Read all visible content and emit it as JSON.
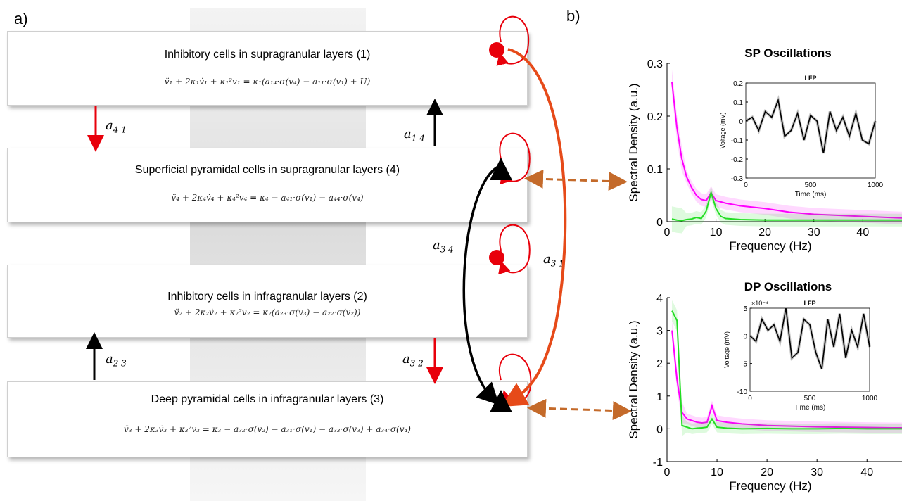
{
  "panel_a_label": "a)",
  "panel_b_label": "b)",
  "boxes": [
    {
      "title": "Inhibitory cells in supragranular layers (1)",
      "equation": "v̈₁ + 2κ₁v̇₁ + κ₁²v₁ = κ₁(a₁₄·σ(v₄) − a₁₁·σ(v₁) + U)"
    },
    {
      "title": "Superficial pyramidal cells in supragranular  layers (4)",
      "equation": "v̈₄ + 2κ₄v̇₄ + κ₄²v₄ = κ₄ − a₄₁·σ(v₁) − a₄₄·σ(v₄)"
    },
    {
      "title": "Inhibitory cells in infragranular layers (2)",
      "equation": "v̈₂ + 2κ₂v̇₂ + κ₂²v₂ = κ₂(a₂₃·σ(v₃) − a₂₂·σ(v₂))"
    },
    {
      "title": "Deep pyramidal cells in infragranular  layers (3)",
      "equation": "v̈₃ + 2κ₃v̇₃ + κ₃²v₃ = κ₃ − a₃₂·σ(v₂) − a₃₁·σ(v₁) − a₃₃·σ(v₃) + a₃₄·σ(v₄)"
    }
  ],
  "connections": {
    "a41": {
      "sym": "a",
      "sub": "4 1"
    },
    "a14": {
      "sym": "a",
      "sub": "1 4"
    },
    "a34": {
      "sym": "a",
      "sub": "3 4"
    },
    "a31": {
      "sym": "a",
      "sub": "3 1"
    },
    "a23": {
      "sym": "a",
      "sub": "2 3"
    },
    "a32": {
      "sym": "a",
      "sub": "3 2"
    }
  },
  "colors": {
    "inhibitory": "#e8000b",
    "pyramidal": "#000000",
    "forward": "#e64a19",
    "probe": "#c46a2a",
    "magenta": "#ff00ff",
    "green": "#22dd22"
  },
  "chart_data": [
    {
      "type": "line",
      "title": "SP Oscillations",
      "xlabel": "Frequency (Hz)",
      "ylabel": "Spectral Density (a.u.)",
      "xlim": [
        0,
        48
      ],
      "ylim": [
        0,
        0.3
      ],
      "xticks": [
        "0",
        "10",
        "20",
        "30",
        "40"
      ],
      "yticks": [
        "0",
        "0.1",
        "0.2",
        "0.3"
      ],
      "series": [
        {
          "color": "magenta",
          "x": [
            1,
            2,
            3,
            4,
            5,
            6,
            7,
            8,
            9,
            10,
            12,
            15,
            20,
            25,
            30,
            35,
            40,
            45,
            48
          ],
          "y": [
            0.265,
            0.18,
            0.12,
            0.085,
            0.065,
            0.05,
            0.042,
            0.04,
            0.055,
            0.04,
            0.035,
            0.03,
            0.025,
            0.018,
            0.014,
            0.012,
            0.01,
            0.008,
            0.007
          ]
        },
        {
          "color": "green",
          "x": [
            1,
            2,
            3,
            4,
            5,
            6,
            7,
            8,
            9,
            10,
            11,
            12,
            15,
            20,
            25,
            30,
            35,
            40,
            45,
            48
          ],
          "y": [
            0.005,
            0.003,
            0.002,
            0.004,
            0.005,
            0.008,
            0.006,
            0.02,
            0.055,
            0.025,
            0.01,
            0.006,
            0.004,
            0.003,
            0.003,
            0.003,
            0.003,
            0.003,
            0.003,
            0.003
          ]
        }
      ],
      "inset": {
        "title": "LFP",
        "xlabel": "Time (ms)",
        "ylabel": "Voltage (mV)",
        "xlim": [
          0,
          1000
        ],
        "ylim": [
          -0.3,
          0.2
        ],
        "xticks": [
          "0",
          "500",
          "1000"
        ],
        "yticks": [
          "0.2",
          "0.1",
          "0",
          "-0.1",
          "-0.2",
          "-0.3"
        ],
        "x": [
          0,
          50,
          100,
          150,
          200,
          250,
          300,
          350,
          400,
          450,
          500,
          550,
          600,
          650,
          700,
          750,
          800,
          850,
          900,
          950,
          1000
        ],
        "y": [
          0.0,
          0.02,
          -0.05,
          0.05,
          0.02,
          0.11,
          -0.08,
          -0.05,
          0.04,
          -0.1,
          0.03,
          0.0,
          -0.17,
          0.05,
          -0.05,
          0.02,
          -0.08,
          0.04,
          -0.1,
          -0.12,
          0.0
        ]
      }
    },
    {
      "type": "line",
      "title": "DP Oscillations",
      "xlabel": "Frequency (Hz)",
      "ylabel": "Spectral Density (a.u.)",
      "xlim": [
        0,
        47
      ],
      "ylim": [
        -1,
        4
      ],
      "xticks": [
        "0",
        "10",
        "20",
        "30",
        "40"
      ],
      "yticks": [
        "-1",
        "0",
        "1",
        "2",
        "3",
        "4"
      ],
      "series": [
        {
          "color": "magenta",
          "x": [
            1,
            2,
            3,
            4,
            5,
            6,
            7,
            8,
            9,
            10,
            12,
            15,
            20,
            25,
            30,
            35,
            40,
            45,
            47
          ],
          "y": [
            3.0,
            1.5,
            0.5,
            0.3,
            0.25,
            0.2,
            0.18,
            0.2,
            0.7,
            0.25,
            0.2,
            0.15,
            0.1,
            0.08,
            0.06,
            0.05,
            0.04,
            0.03,
            0.03
          ]
        },
        {
          "color": "green",
          "x": [
            1,
            2,
            3,
            4,
            5,
            6,
            7,
            8,
            9,
            10,
            12,
            15,
            20,
            25,
            30,
            35,
            40,
            45,
            47
          ],
          "y": [
            3.6,
            3.3,
            0.1,
            0.05,
            0.0,
            0.02,
            0.03,
            0.05,
            0.3,
            0.05,
            0.02,
            0.0,
            0.01,
            0.0,
            0.0,
            0.01,
            0.0,
            0.0,
            0.0
          ]
        }
      ],
      "inset": {
        "title": "LFP",
        "xlabel": "Time (ms)",
        "ylabel": "Voltage (mV)",
        "multiplier": "×10⁻⁴",
        "xlim": [
          0,
          1000
        ],
        "ylim": [
          -10,
          5
        ],
        "xticks": [
          "0",
          "500",
          "1000"
        ],
        "yticks": [
          "5",
          "0",
          "-5",
          "-10"
        ],
        "x": [
          0,
          50,
          100,
          150,
          200,
          250,
          300,
          350,
          400,
          450,
          500,
          550,
          600,
          650,
          700,
          750,
          800,
          850,
          900,
          950,
          1000
        ],
        "y": [
          0,
          -1,
          3,
          1,
          2,
          -1,
          5,
          -4,
          -3,
          3,
          2,
          -3,
          -6,
          3,
          -2,
          4,
          -4,
          1,
          -2,
          4,
          -2
        ]
      }
    }
  ]
}
